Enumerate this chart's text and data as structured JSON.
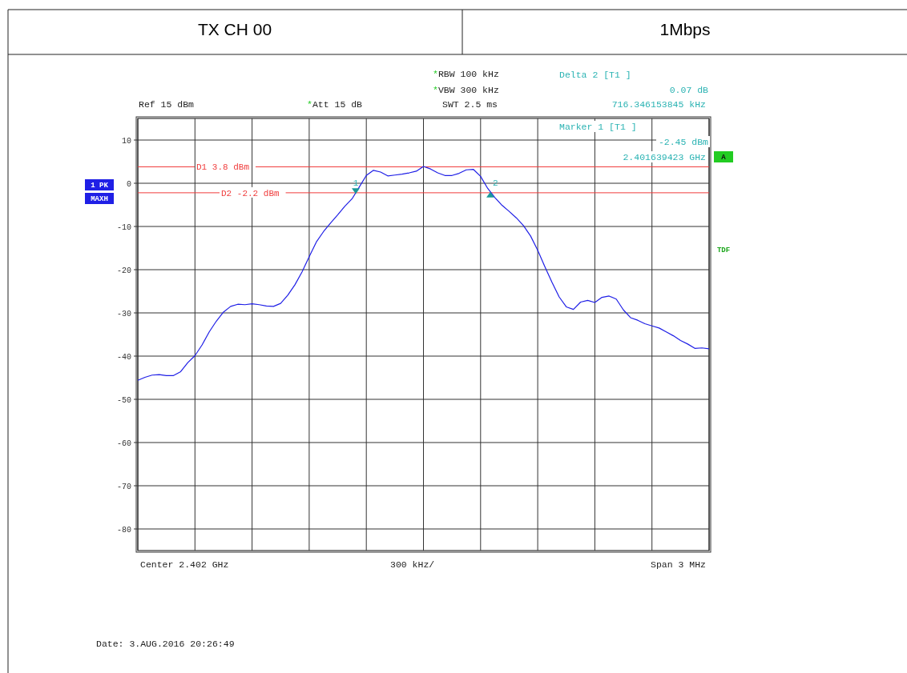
{
  "chart_data": {
    "type": "line",
    "title": "TX CH 00",
    "subtitle": "1Mbps",
    "categories": [
      null,
      null,
      null,
      null,
      null,
      null,
      null,
      null,
      null,
      null,
      null,
      null,
      null,
      null,
      null,
      null,
      null,
      null,
      null,
      null,
      null,
      null,
      null,
      null,
      null,
      null,
      null,
      null,
      null,
      null,
      null,
      null,
      null,
      null,
      null,
      null,
      null,
      null,
      null,
      null,
      null,
      null,
      null,
      null,
      null,
      null,
      null,
      null,
      null,
      null,
      null,
      null,
      null,
      null,
      null,
      null,
      null,
      null,
      null,
      null,
      null,
      null,
      null,
      null,
      null,
      null,
      null,
      null,
      null,
      null,
      null,
      null,
      null,
      null,
      null,
      null,
      null,
      null,
      null,
      null,
      null
    ],
    "series": [
      {
        "color": "#1f1fe6",
        "values": [
          -45.6,
          -44.9,
          -44.4,
          -44.3,
          -44.5,
          -44.5,
          -43.6,
          -41.5,
          -39.9,
          -37.4,
          -34.4,
          -31.9,
          -29.8,
          -28.5,
          -28,
          -28.1,
          -27.9,
          -28.1,
          -28.4,
          -28.5,
          -27.8,
          -25.9,
          -23.5,
          -20.5,
          -17,
          -13.6,
          -11.2,
          -9.2,
          -7.3,
          -5.3,
          -3.6,
          -0.9,
          1.8,
          3,
          2.6,
          1.7,
          1.9,
          2.1,
          2.4,
          2.8,
          3.9,
          3.3,
          2.4,
          1.8,
          1.8,
          2.3,
          3.1,
          3.2,
          1.6,
          -1.2,
          -3.3,
          -5.1,
          -6.5,
          -8,
          -9.8,
          -12.2,
          -15.5,
          -19.3,
          -22.9,
          -26.3,
          -28.6,
          -29.2,
          -27.5,
          -27.1,
          -27.6,
          -26.4,
          -26.1,
          -26.8,
          -29.3,
          -31.1,
          -31.7,
          -32.5,
          -33,
          -33.5,
          -34.4,
          -35.3,
          -36.4,
          -37.2,
          -38.2,
          -38.1,
          -38.3
        ]
      }
    ],
    "ylim": [
      -85,
      15
    ],
    "yticks": [
      10,
      0,
      -10,
      -20,
      -30,
      -40,
      -50,
      -60,
      -70,
      -80
    ],
    "grid": true,
    "ref_lines": [
      {
        "axis": "y",
        "value": 3.8,
        "label": "D1 3.8 dBm",
        "color": "#f03c3c"
      },
      {
        "axis": "y",
        "value": -2.2,
        "label": "D2 -2.2 dBm",
        "color": "#f03c3c"
      }
    ],
    "annotations": [
      "Ref 15 dBm",
      "*Att 15 dB",
      "*RBW 100 kHz",
      "*VBW 300 kHz",
      "SWT 2.5 ms",
      "Delta 2 [T1 ]",
      "0.07 dB",
      "716.346153845 kHz",
      "Marker 1 [T1 ]",
      "-2.45 dBm",
      "2.401639423 GHz",
      "1 PK",
      "MAXH",
      "A",
      "TDF",
      "Center 2.402 GHz",
      "300 kHz/",
      "Span 3 MHz",
      "Date: 3.AUG.2016 20:26:49",
      {
        "text": "1",
        "y": -2.45
      },
      {
        "text": "2",
        "y": -2.38
      }
    ]
  }
}
